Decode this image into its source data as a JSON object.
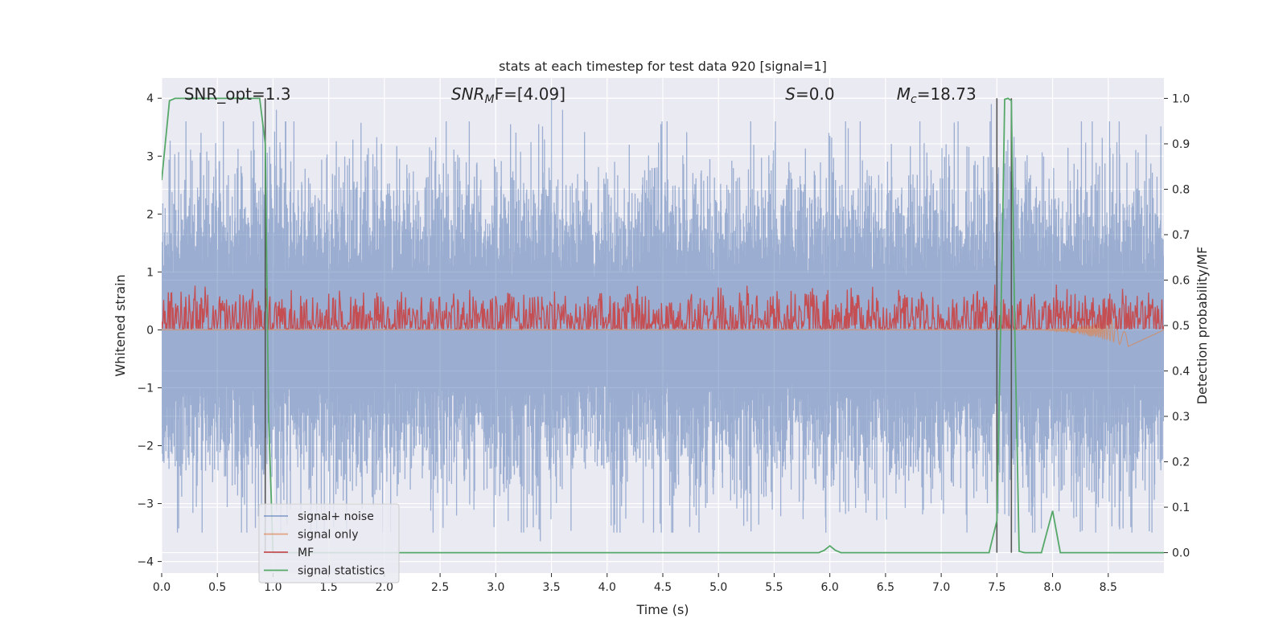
{
  "chart_data": {
    "type": "line",
    "title": "stats at each timestep for test data 920 [signal=1]",
    "xlabel": "Time (s)",
    "ylabel_left": "Whitened strain",
    "ylabel_right": "Detection probability/MF",
    "xlim": [
      0.0,
      9.0
    ],
    "ylim_left": [
      -4.2,
      4.35
    ],
    "ylim_right": [
      -0.045,
      1.045
    ],
    "x_ticks": [
      "0.0",
      "0.5",
      "1.0",
      "1.5",
      "2.0",
      "2.5",
      "3.0",
      "3.5",
      "4.0",
      "4.5",
      "5.0",
      "5.5",
      "6.0",
      "6.5",
      "7.0",
      "7.5",
      "8.0",
      "8.5"
    ],
    "y_left_ticks": [
      "−4",
      "−3",
      "−2",
      "−1",
      "0",
      "1",
      "2",
      "3",
      "4"
    ],
    "y_right_ticks": [
      "0.0",
      "0.1",
      "0.2",
      "0.3",
      "0.4",
      "0.5",
      "0.6",
      "0.7",
      "0.8",
      "0.9",
      "1.0"
    ],
    "grid": true,
    "legend_position": "lower-left",
    "annotations": [
      {
        "text": "SNR_opt=1.3",
        "x": 0.2
      },
      {
        "text": "SNR",
        "sub": "M",
        "rest": "F=[4.09]",
        "x": 2.6
      },
      {
        "text": "S",
        "rest": "=0.0",
        "x": 5.6
      },
      {
        "text": "M",
        "sub": "c",
        "rest": "=18.73",
        "x": 6.6
      }
    ],
    "vertical_markers": [
      0.93,
      7.5,
      7.63
    ],
    "series": [
      {
        "name": "signal+ noise",
        "color": "#4c72b0",
        "axis": "left",
        "style": "noise",
        "amplitude": 1.0,
        "peaks": [
          [
            3.5,
            3.99
          ],
          [
            3.6,
            3.8
          ],
          [
            1.03,
            3.8
          ],
          [
            7.45,
            3.9
          ],
          [
            6.0,
            3.35
          ],
          [
            3.4,
            -3.65
          ],
          [
            4.8,
            -3.2
          ]
        ]
      },
      {
        "name": "signal only",
        "color": "#dd8452",
        "axis": "left",
        "style": "chirp",
        "start": 7.8,
        "end": 8.68,
        "peak": -0.3
      },
      {
        "name": "MF",
        "color": "#c44e52",
        "axis": "right",
        "style": "mf",
        "base": 0.5,
        "spread": 0.05
      },
      {
        "name": "signal statistics",
        "color": "#55a868",
        "axis": "right",
        "style": "line",
        "x": [
          0.0,
          0.07,
          0.12,
          0.88,
          0.93,
          0.96,
          1.0,
          5.9,
          5.95,
          6.0,
          6.05,
          6.1,
          7.43,
          7.5,
          7.55,
          7.57,
          7.6,
          7.63,
          7.66,
          7.7,
          7.75,
          7.8,
          7.9,
          8.0,
          8.07,
          8.2,
          9.0
        ],
        "y": [
          0.82,
          0.995,
          1.0,
          1.0,
          0.9,
          0.3,
          0.0,
          0.0,
          0.005,
          0.015,
          0.005,
          0.0,
          0.0,
          0.07,
          0.7,
          0.998,
          1.0,
          0.995,
          0.5,
          0.003,
          0.0,
          0.0,
          0.0,
          0.092,
          0.0,
          0.0,
          0.0
        ]
      }
    ]
  }
}
